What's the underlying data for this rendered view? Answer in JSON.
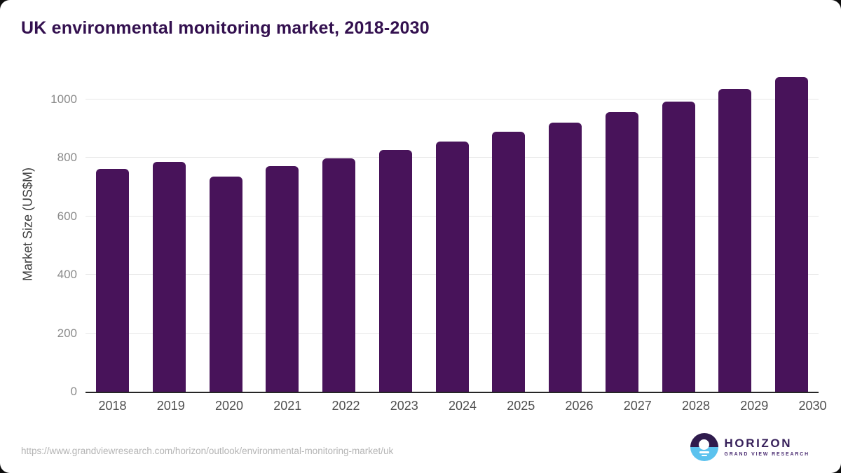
{
  "chart_data": {
    "type": "bar",
    "title": "UK environmental monitoring market, 2018-2030",
    "categories": [
      "2018",
      "2019",
      "2020",
      "2021",
      "2022",
      "2023",
      "2024",
      "2025",
      "2026",
      "2027",
      "2028",
      "2029",
      "2030"
    ],
    "values": [
      762,
      786,
      736,
      772,
      798,
      827,
      856,
      889,
      921,
      957,
      993,
      1036,
      1077
    ],
    "xlabel": "",
    "ylabel": "Market Size (US$M)",
    "ylim": [
      0,
      1100
    ],
    "yticks": [
      0,
      200,
      400,
      600,
      800,
      1000
    ],
    "grid": true,
    "legend": false,
    "bar_color": "#48135a"
  },
  "footer": {
    "source_url": "https://www.grandviewresearch.com/horizon/outlook/environmental-monitoring-market/uk",
    "logo": {
      "brand": "HORIZON",
      "tagline": "GRAND VIEW RESEARCH"
    }
  },
  "colors": {
    "bar": "#48135a",
    "title_text": "#33104f",
    "axis_line": "#262626",
    "gridline": "#e7e7e7",
    "tick_text": "#8a8a8a",
    "xlabel_text": "#4f4f4f",
    "url_text": "#b4b4b4",
    "logo_purple": "#2f1b4d",
    "logo_blue": "#5bc2ee"
  }
}
